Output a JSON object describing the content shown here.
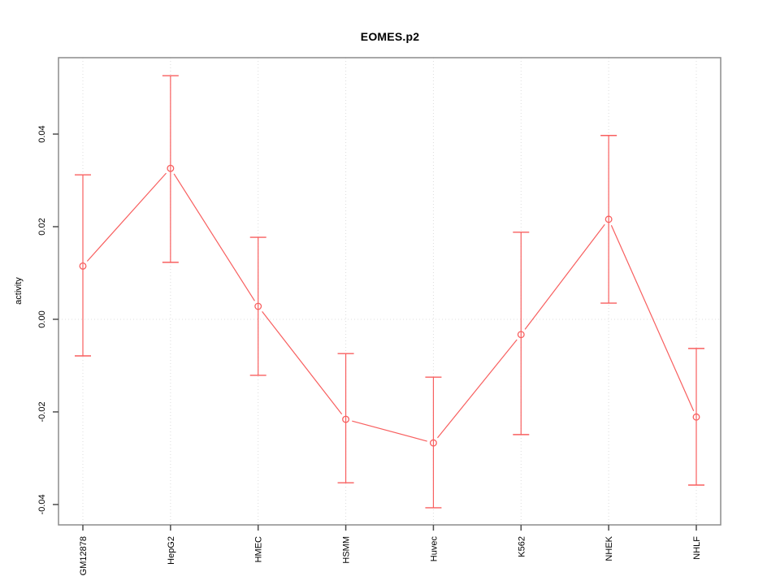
{
  "chart_data": {
    "type": "line",
    "title": "EOMES.p2",
    "xlabel": "",
    "ylabel": "activity",
    "categories": [
      "GM12878",
      "HepG2",
      "HMEC",
      "HSMM",
      "Huvec",
      "K562",
      "NHEK",
      "NHLF"
    ],
    "series": [
      {
        "name": "activity",
        "values": [
          0.0115,
          0.0326,
          0.0028,
          -0.0216,
          -0.0267,
          -0.0033,
          0.0216,
          -0.0211
        ],
        "error_low": [
          -0.0079,
          0.0123,
          -0.0121,
          -0.0353,
          -0.0407,
          -0.0249,
          0.0035,
          -0.0358
        ],
        "error_high": [
          0.0312,
          0.0526,
          0.0177,
          -0.0074,
          -0.0125,
          0.0188,
          0.0397,
          -0.0063
        ]
      }
    ],
    "ylim": [
      -0.0444,
      0.0565
    ],
    "yticks": [
      -0.04,
      -0.02,
      0.0,
      0.02,
      0.04
    ],
    "ytick_labels": [
      "-0.04",
      "-0.02",
      "0.00",
      "0.02",
      "0.04"
    ],
    "zero_line": 0.0,
    "grid": "dotted vertical line at each category; dotted horizontal line at zero",
    "legend": "none",
    "marker": "open-circle",
    "colors": {
      "series": "#f85f5f",
      "grid": "#dcdcdc",
      "box": "#8c8c8c",
      "tick": "#4d4d4d",
      "text": "#000000"
    }
  }
}
